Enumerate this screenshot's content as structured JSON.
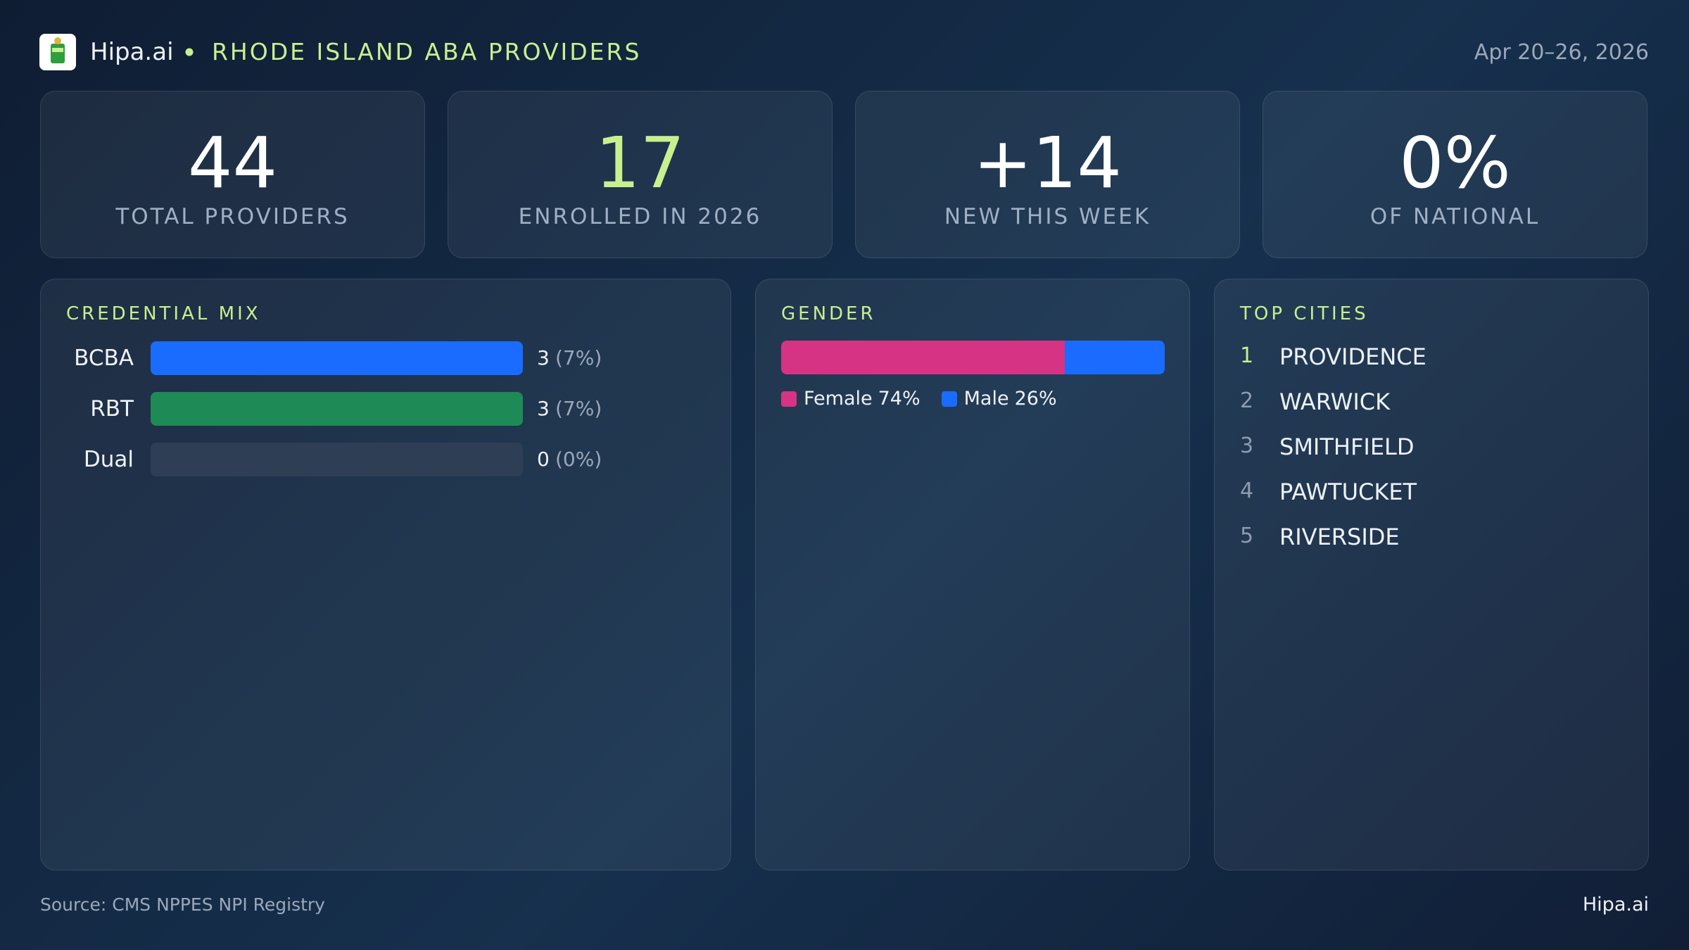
{
  "header": {
    "brand": "Hipa.ai",
    "title": "RHODE ISLAND ABA PROVIDERS",
    "date": "Apr 20–26, 2026"
  },
  "stats": [
    {
      "value": "44",
      "label": "TOTAL PROVIDERS"
    },
    {
      "value": "17",
      "label": "ENROLLED IN 2026"
    },
    {
      "value": "+14",
      "label": "NEW THIS WEEK"
    },
    {
      "value": "0%",
      "label": "OF NATIONAL"
    }
  ],
  "credential_mix": {
    "title": "CREDENTIAL MIX",
    "items": [
      {
        "label": "BCBA",
        "count": 3,
        "percent_label": "(7%)",
        "color": "#1a6cff"
      },
      {
        "label": "RBT",
        "count": 3,
        "percent_label": "(7%)",
        "color": "#1e8a55"
      },
      {
        "label": "Dual",
        "count": 0,
        "percent_label": "(0%)",
        "color": "#6b7c93"
      }
    ]
  },
  "gender": {
    "title": "GENDER",
    "series": [
      {
        "name": "Female",
        "value": 74,
        "value_label": "74%",
        "color": "#d63384"
      },
      {
        "name": "Male",
        "value": 26,
        "value_label": "26%",
        "color": "#1a6cff"
      }
    ]
  },
  "top_cities": {
    "title": "TOP CITIES",
    "items": [
      {
        "rank": 1,
        "name": "PROVIDENCE"
      },
      {
        "rank": 2,
        "name": "WARWICK"
      },
      {
        "rank": 3,
        "name": "SMITHFIELD"
      },
      {
        "rank": 4,
        "name": "PAWTUCKET"
      },
      {
        "rank": 5,
        "name": "RIVERSIDE"
      }
    ]
  },
  "footer": {
    "source": "Source: CMS NPPES NPI Registry",
    "brand": "Hipa.ai"
  }
}
